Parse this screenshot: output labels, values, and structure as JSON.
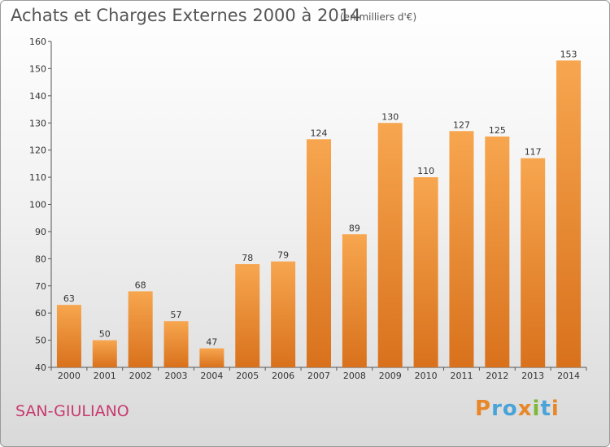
{
  "header": {
    "title": "Achats et Charges Externes 2000 à 2014",
    "subtitle": "(en milliers d'€)"
  },
  "footer": {
    "location": "SAN-GIULIANO",
    "brand": "Proxiti"
  },
  "colors": {
    "bar_light": "#f7a64f",
    "bar_dark": "#d9711c",
    "location": "#c83a6e"
  },
  "chart_data": {
    "type": "bar",
    "title": "Achats et Charges Externes 2000 à 2014",
    "subtitle": "(en milliers d'€)",
    "xlabel": "",
    "ylabel": "",
    "categories": [
      "2000",
      "2001",
      "2002",
      "2003",
      "2004",
      "2005",
      "2006",
      "2007",
      "2008",
      "2009",
      "2010",
      "2011",
      "2012",
      "2013",
      "2014"
    ],
    "values": [
      63,
      50,
      68,
      57,
      47,
      78,
      79,
      124,
      89,
      130,
      110,
      127,
      125,
      117,
      153
    ],
    "ylim": [
      40,
      160
    ],
    "yticks": [
      40,
      50,
      60,
      70,
      80,
      90,
      100,
      110,
      120,
      130,
      140,
      150,
      160
    ],
    "grid": false,
    "data_labels": true
  }
}
